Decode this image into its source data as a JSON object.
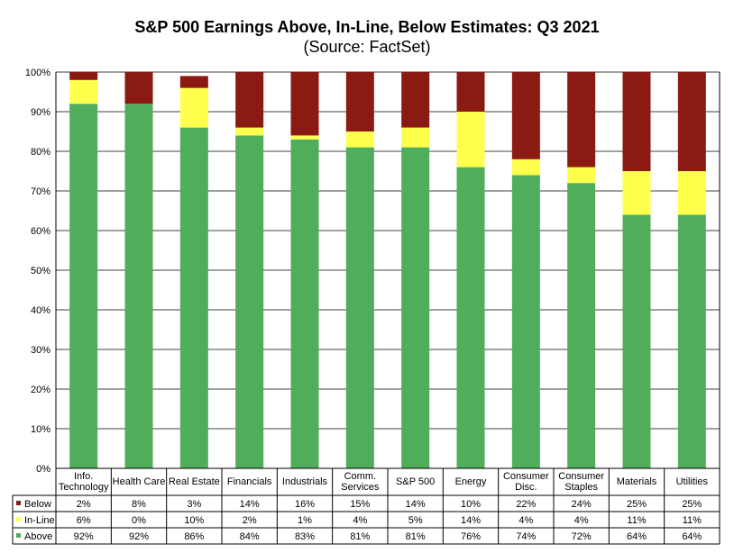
{
  "chart_data": {
    "type": "bar",
    "stacked": true,
    "title": "S&P 500 Earnings Above, In-Line, Below Estimates: Q3 2021",
    "subtitle": "(Source: FactSet)",
    "categories": [
      [
        "Info.",
        "Technology"
      ],
      [
        "Health Care"
      ],
      [
        "Real Estate"
      ],
      [
        "Financials"
      ],
      [
        "Industrials"
      ],
      [
        "Comm.",
        "Services"
      ],
      [
        "S&P 500"
      ],
      [
        "Energy"
      ],
      [
        "Consumer",
        "Disc."
      ],
      [
        "Consumer",
        "Staples"
      ],
      [
        "Materials"
      ],
      [
        "Utilities"
      ]
    ],
    "series": [
      {
        "name": "Above",
        "color": "#4fad5b",
        "values": [
          92,
          92,
          86,
          84,
          83,
          81,
          81,
          76,
          74,
          72,
          64,
          64
        ]
      },
      {
        "name": "In-Line",
        "color": "#ffff4d",
        "values": [
          6,
          0,
          10,
          2,
          1,
          4,
          5,
          14,
          4,
          4,
          11,
          11
        ]
      },
      {
        "name": "Below",
        "color": "#8b1a12",
        "values": [
          2,
          8,
          3,
          14,
          16,
          15,
          14,
          10,
          22,
          24,
          25,
          25
        ]
      }
    ],
    "table_rows": [
      {
        "name": "Below",
        "color": "#8b1a12",
        "labels": [
          "2%",
          "8%",
          "3%",
          "14%",
          "16%",
          "15%",
          "14%",
          "10%",
          "22%",
          "24%",
          "25%",
          "25%"
        ]
      },
      {
        "name": "In-Line",
        "color": "#ffff4d",
        "labels": [
          "6%",
          "0%",
          "10%",
          "2%",
          "1%",
          "4%",
          "5%",
          "14%",
          "4%",
          "4%",
          "11%",
          "11%"
        ]
      },
      {
        "name": "Above",
        "color": "#4fad5b",
        "labels": [
          "92%",
          "92%",
          "86%",
          "84%",
          "83%",
          "81%",
          "81%",
          "76%",
          "74%",
          "72%",
          "64%",
          "64%"
        ]
      }
    ],
    "ylim": [
      0,
      100
    ],
    "yticks": [
      "0%",
      "10%",
      "20%",
      "30%",
      "40%",
      "50%",
      "60%",
      "70%",
      "80%",
      "90%",
      "100%"
    ],
    "grid": true,
    "legend": "data-table"
  }
}
